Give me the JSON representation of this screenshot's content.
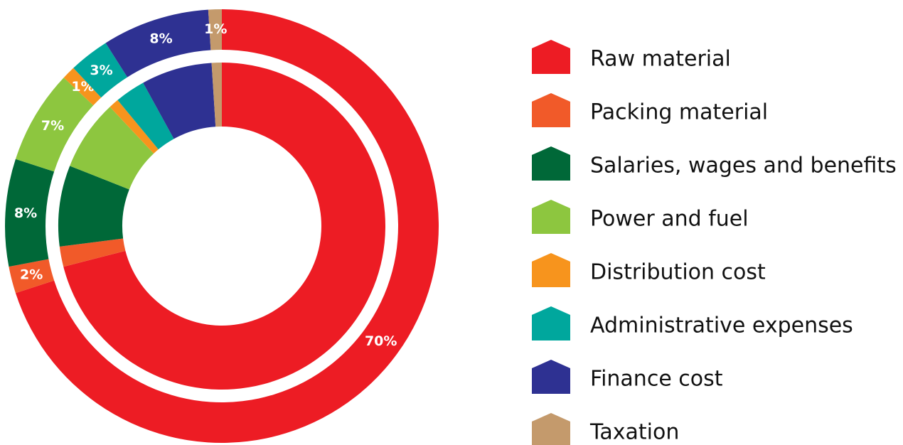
{
  "chart_data": {
    "type": "pie",
    "categories": [
      "Raw material",
      "Packing material",
      "Salaries, wages and benefits",
      "Power and fuel",
      "Distribution cost",
      "Administrative expenses",
      "Finance cost",
      "Taxation"
    ],
    "colors": [
      "#ed1c24",
      "#f15a29",
      "#006838",
      "#8dc63f",
      "#f7941d",
      "#00a79d",
      "#2e3192",
      "#c49a6c"
    ],
    "series": [
      {
        "values": [
          70,
          2,
          8,
          7,
          1,
          3,
          8,
          1
        ],
        "value_labels": [
          "70%",
          "2%",
          "8%",
          "7%",
          "1%",
          "3%",
          "8%",
          "1%"
        ]
      },
      {
        "values": [
          71,
          2,
          8,
          7,
          1,
          3,
          7,
          1
        ]
      }
    ]
  }
}
